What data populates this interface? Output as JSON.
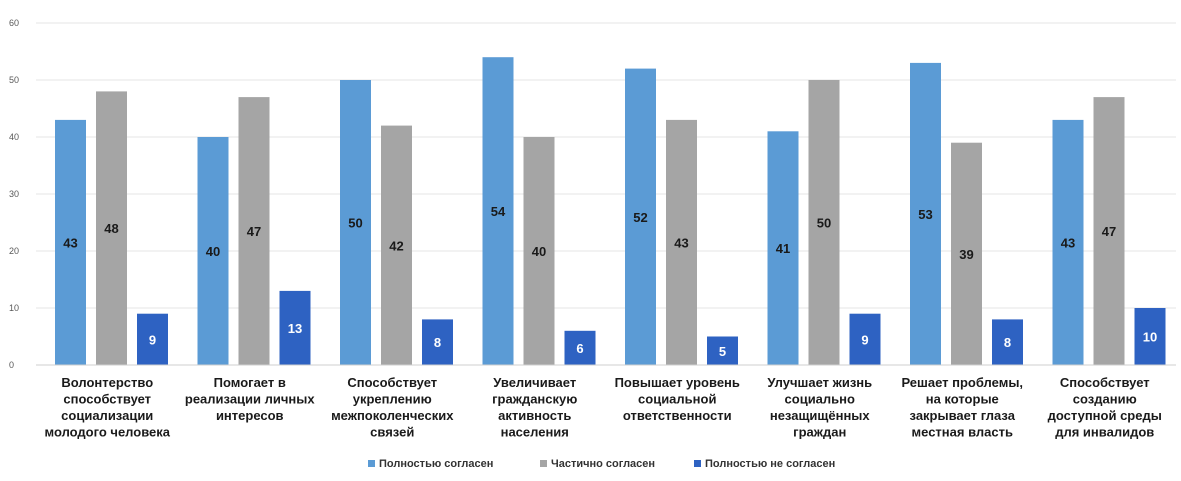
{
  "chart_data": {
    "type": "bar",
    "title": "",
    "xlabel": "",
    "ylabel": "",
    "ylim": [
      0,
      60
    ],
    "yticks": [
      0,
      10,
      20,
      30,
      40,
      50,
      60
    ],
    "grid": true,
    "legend_position": "bottom",
    "categories": [
      [
        "Волонтерство",
        "способствует",
        "социализации",
        "молодого человека"
      ],
      [
        "Помогает в",
        "реализации личных",
        "интересов"
      ],
      [
        "Способствует",
        "укреплению",
        "межпоколенческих",
        "связей"
      ],
      [
        "Увеличивает",
        "гражданскую",
        "активность",
        "населения"
      ],
      [
        "Повышает уровень",
        "социальной",
        "ответственности"
      ],
      [
        "Улучшает жизнь",
        "социально",
        "незащищённых",
        "граждан"
      ],
      [
        "Решает проблемы,",
        "на которые",
        "закрывает глаза",
        "местная власть"
      ],
      [
        "Способствует",
        "созданию",
        "доступной среды",
        "для инвалидов"
      ]
    ],
    "series": [
      {
        "name": "Полностью согласен",
        "color": "#5b9bd5",
        "values": [
          43,
          40,
          50,
          54,
          52,
          41,
          53,
          43
        ]
      },
      {
        "name": "Частично согласен",
        "color": "#a5a5a5",
        "values": [
          48,
          47,
          42,
          40,
          43,
          50,
          39,
          47
        ]
      },
      {
        "name": "Полностью не согласен",
        "color": "#2e62c2",
        "values": [
          9,
          13,
          8,
          6,
          5,
          9,
          8,
          10
        ]
      }
    ]
  }
}
